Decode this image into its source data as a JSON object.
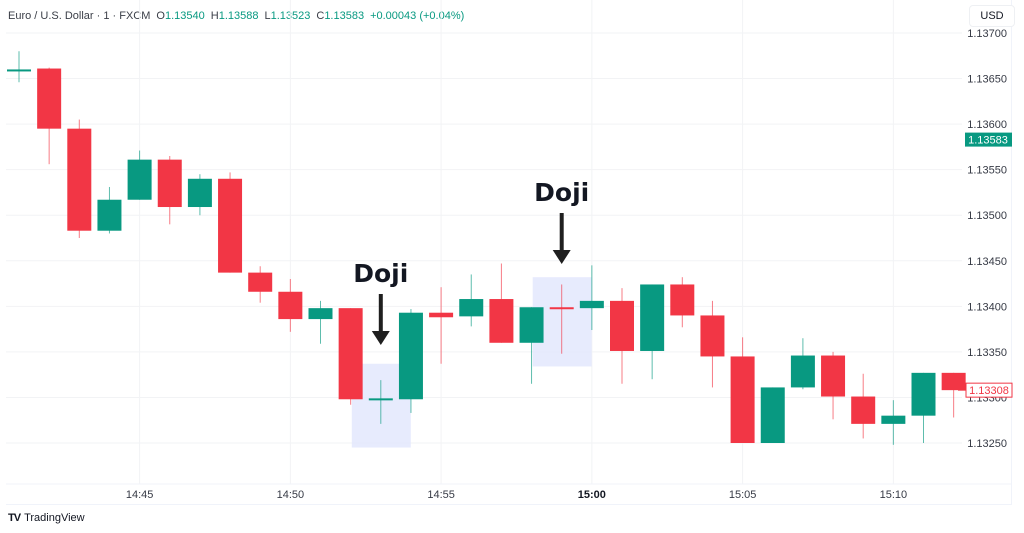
{
  "header": {
    "symbol": "Euro / U.S. Dollar · 1 · FXCM",
    "open_label": "O",
    "open": "1.13540",
    "high_label": "H",
    "high": "1.13588",
    "low_label": "L",
    "low": "1.13523",
    "close_label": "C",
    "close": "1.13583",
    "change": "+0.00043 (+0.04%)"
  },
  "currency_button": "USD",
  "branding": {
    "logo": "TV",
    "name": "TradingView"
  },
  "colors": {
    "up": "#089981",
    "down": "#f23645",
    "grid": "#f2f3f5",
    "highlight": "#e3e8fd",
    "annotation": "#1f1f1f"
  },
  "price_labels": {
    "green_tag": "1.13583",
    "red_tag": "1.13308"
  },
  "annotations": [
    {
      "text": "Doji",
      "target_time": "14:53"
    },
    {
      "text": "Doji",
      "target_time": "14:59"
    }
  ],
  "chart_data": {
    "type": "candlestick",
    "title": "Euro / U.S. Dollar · 1 · FXCM",
    "xlabel": "",
    "ylabel": "USD",
    "ylim": [
      1.132,
      1.1371
    ],
    "y_ticks": [
      "1.13700",
      "1.13650",
      "1.13600",
      "1.13550",
      "1.13500",
      "1.13450",
      "1.13400",
      "1.13350",
      "1.13300",
      "1.13250"
    ],
    "x_ticks": [
      "14:45",
      "14:50",
      "14:55",
      "15:00",
      "15:05",
      "15:10"
    ],
    "grid": true,
    "legend_position": "top-left",
    "highlight_boxes": [
      {
        "label": "Doji",
        "time": "14:53",
        "from": 1.13337,
        "to": 1.13245
      },
      {
        "label": "Doji",
        "time": "14:59",
        "from": 1.13432,
        "to": 1.13334
      }
    ],
    "candles": [
      {
        "time": "14:41",
        "open": 1.13659,
        "high": 1.1368,
        "low": 1.13646,
        "close": 1.1366
      },
      {
        "time": "14:42",
        "open": 1.13661,
        "high": 1.13662,
        "low": 1.13556,
        "close": 1.13595
      },
      {
        "time": "14:43",
        "open": 1.13595,
        "high": 1.13605,
        "low": 1.13475,
        "close": 1.13483
      },
      {
        "time": "14:44",
        "open": 1.13483,
        "high": 1.13531,
        "low": 1.1348,
        "close": 1.13517
      },
      {
        "time": "14:45",
        "open": 1.13517,
        "high": 1.13571,
        "low": 1.13517,
        "close": 1.13561
      },
      {
        "time": "14:46",
        "open": 1.13561,
        "high": 1.13565,
        "low": 1.1349,
        "close": 1.13509
      },
      {
        "time": "14:47",
        "open": 1.13509,
        "high": 1.13545,
        "low": 1.135,
        "close": 1.1354
      },
      {
        "time": "14:48",
        "open": 1.1354,
        "high": 1.13547,
        "low": 1.13437,
        "close": 1.13437
      },
      {
        "time": "14:49",
        "open": 1.13437,
        "high": 1.13444,
        "low": 1.13404,
        "close": 1.13416
      },
      {
        "time": "14:50",
        "open": 1.13416,
        "high": 1.1343,
        "low": 1.13372,
        "close": 1.13386
      },
      {
        "time": "14:51",
        "open": 1.13386,
        "high": 1.13406,
        "low": 1.13359,
        "close": 1.13398
      },
      {
        "time": "14:52",
        "open": 1.13398,
        "high": 1.13398,
        "low": 1.13292,
        "close": 1.13298
      },
      {
        "time": "14:53",
        "open": 1.13298,
        "high": 1.13319,
        "low": 1.13271,
        "close": 1.13299
      },
      {
        "time": "14:54",
        "open": 1.13298,
        "high": 1.13397,
        "low": 1.13283,
        "close": 1.13393
      },
      {
        "time": "14:55",
        "open": 1.13393,
        "high": 1.13421,
        "low": 1.13337,
        "close": 1.13388
      },
      {
        "time": "14:56",
        "open": 1.13389,
        "high": 1.13435,
        "low": 1.13378,
        "close": 1.13408
      },
      {
        "time": "14:57",
        "open": 1.13408,
        "high": 1.13447,
        "low": 1.1336,
        "close": 1.1336
      },
      {
        "time": "14:58",
        "open": 1.1336,
        "high": 1.13399,
        "low": 1.13315,
        "close": 1.13399
      },
      {
        "time": "14:59",
        "open": 1.13399,
        "high": 1.13424,
        "low": 1.13348,
        "close": 1.13398
      },
      {
        "time": "15:00",
        "open": 1.13398,
        "high": 1.13445,
        "low": 1.13374,
        "close": 1.13406
      },
      {
        "time": "15:01",
        "open": 1.13406,
        "high": 1.1342,
        "low": 1.13315,
        "close": 1.13351
      },
      {
        "time": "15:02",
        "open": 1.13351,
        "high": 1.13424,
        "low": 1.1332,
        "close": 1.13424
      },
      {
        "time": "15:03",
        "open": 1.13424,
        "high": 1.13432,
        "low": 1.13377,
        "close": 1.1339
      },
      {
        "time": "15:04",
        "open": 1.1339,
        "high": 1.13406,
        "low": 1.13311,
        "close": 1.13345
      },
      {
        "time": "15:05",
        "open": 1.13345,
        "high": 1.13366,
        "low": 1.1325,
        "close": 1.1325
      },
      {
        "time": "15:06",
        "open": 1.1325,
        "high": 1.13311,
        "low": 1.1325,
        "close": 1.13311
      },
      {
        "time": "15:07",
        "open": 1.13311,
        "high": 1.13365,
        "low": 1.13309,
        "close": 1.13346
      },
      {
        "time": "15:08",
        "open": 1.13346,
        "high": 1.1335,
        "low": 1.13276,
        "close": 1.13301
      },
      {
        "time": "15:09",
        "open": 1.13301,
        "high": 1.13326,
        "low": 1.13255,
        "close": 1.13271
      },
      {
        "time": "15:10",
        "open": 1.13271,
        "high": 1.13297,
        "low": 1.13248,
        "close": 1.1328
      },
      {
        "time": "15:11",
        "open": 1.1328,
        "high": 1.13327,
        "low": 1.1325,
        "close": 1.13327
      },
      {
        "time": "15:12",
        "open": 1.13327,
        "high": 1.13327,
        "low": 1.13278,
        "close": 1.13308
      }
    ]
  }
}
